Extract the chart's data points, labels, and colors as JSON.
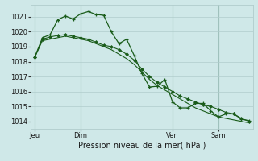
{
  "bg_color": "#cfe8e8",
  "grid_color": "#b0cccc",
  "line_color": "#1a5c1a",
  "title": "Pression niveau de la mer( hPa )",
  "ylim": [
    1013.5,
    1021.8
  ],
  "yticks": [
    1014,
    1015,
    1016,
    1017,
    1018,
    1019,
    1020,
    1021
  ],
  "day_labels": [
    "Jeu",
    "Dim",
    "Ven",
    "Sam"
  ],
  "day_positions": [
    0,
    6,
    18,
    24
  ],
  "series1": [
    1018.3,
    1019.6,
    1019.8,
    1020.8,
    1021.05,
    1020.85,
    1021.2,
    1021.35,
    1021.15,
    1021.1,
    1020.0,
    1019.2,
    1019.5,
    1018.4,
    1017.2,
    1016.3,
    1016.35,
    1016.8,
    1015.3,
    1014.9,
    1014.9,
    1015.2,
    1015.2,
    1014.7,
    1014.3,
    1014.5,
    1014.5,
    1014.15,
    1014.05
  ],
  "series2": [
    1018.3,
    1019.5,
    1019.65,
    1019.75,
    1019.8,
    1019.7,
    1019.6,
    1019.5,
    1019.3,
    1019.1,
    1019.0,
    1018.8,
    1018.5,
    1018.1,
    1017.5,
    1017.0,
    1016.6,
    1016.3,
    1016.0,
    1015.7,
    1015.5,
    1015.3,
    1015.1,
    1015.0,
    1014.8,
    1014.6,
    1014.5,
    1014.2,
    1014.0
  ],
  "series3": [
    1018.3,
    1019.4,
    1019.5,
    1019.6,
    1019.7,
    1019.6,
    1019.5,
    1019.4,
    1019.2,
    1019.0,
    1018.8,
    1018.5,
    1018.2,
    1017.8,
    1017.3,
    1016.8,
    1016.4,
    1016.1,
    1015.8,
    1015.5,
    1015.2,
    1014.9,
    1014.7,
    1014.5,
    1014.3,
    1014.2,
    1014.1,
    1014.0,
    1013.9
  ],
  "title_fontsize": 7,
  "tick_fontsize": 6
}
